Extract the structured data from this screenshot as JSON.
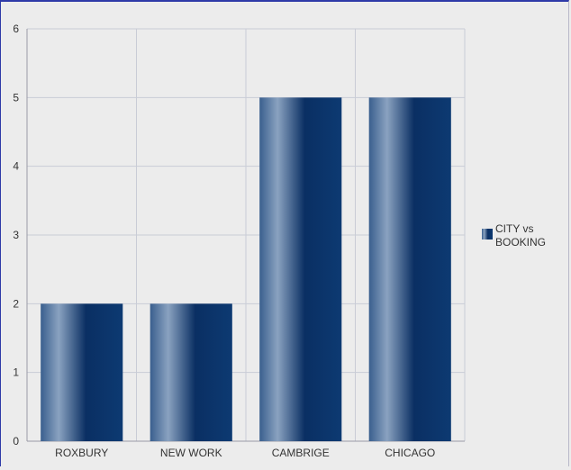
{
  "chart_data": {
    "type": "bar",
    "categories": [
      "ROXBURY",
      "NEW WORK",
      "CAMBRIGE",
      "CHICAGO"
    ],
    "series": [
      {
        "name": "CITY vs BOOKING",
        "values": [
          2,
          2,
          5,
          5
        ]
      }
    ],
    "ylim": [
      0,
      6
    ],
    "yticks": [
      0,
      1,
      2,
      3,
      4,
      5,
      6
    ],
    "grid": true,
    "legend": {
      "position": "right",
      "lines": [
        "CITY vs",
        "BOOKING"
      ]
    },
    "colors": {
      "bar_dark": "#0a2f63",
      "bar_light": "#8aa2c0",
      "grid": "#c9ccd6",
      "axis": "#9a9aa6",
      "background": "#ececec"
    }
  }
}
